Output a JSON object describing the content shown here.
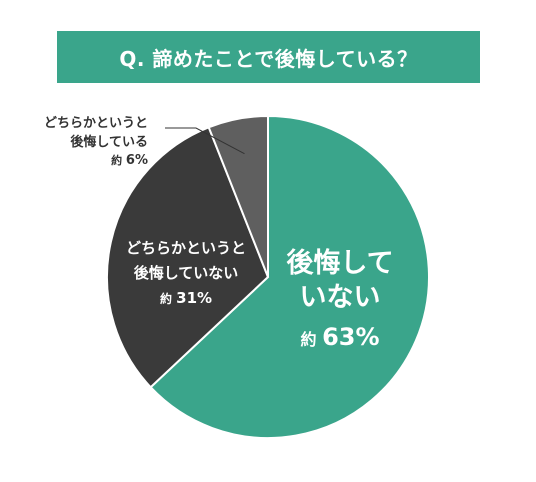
{
  "title": "Q. 諦めたことで後悔している？",
  "chart_data": {
    "type": "pie",
    "title": "Q. 諦めたことで後悔している？",
    "slices": [
      {
        "label": "後悔していない",
        "prefix": "約",
        "value": 63,
        "value_text": "63%",
        "color": "#3aa58b"
      },
      {
        "label": "どちらかというと後悔していない",
        "prefix": "約",
        "value": 31,
        "value_text": "31%",
        "color": "#3a3a3a"
      },
      {
        "label": "どちらかというと後悔している",
        "prefix": "約",
        "value": 6,
        "value_text": "6%",
        "color": "#5f5f5f"
      }
    ]
  },
  "colors": {
    "accent": "#3aa58b",
    "dark": "#3a3a3a",
    "gray": "#5f5f5f"
  }
}
